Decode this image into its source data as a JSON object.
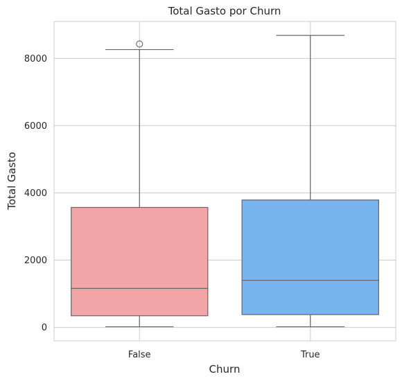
{
  "chart_data": {
    "type": "box",
    "title": "Total Gasto por Churn",
    "xlabel": "Churn",
    "ylabel": "Total Gasto",
    "categories": [
      "False",
      "True"
    ],
    "ylim": [
      -400,
      9100
    ],
    "yticks": [
      0,
      2000,
      4000,
      6000,
      8000
    ],
    "grid": true,
    "boxes": [
      {
        "category": "False",
        "whisker_low": 19,
        "q1": 346,
        "median": 1158,
        "q3": 3568,
        "whisker_high": 8264,
        "outliers": [
          8430
        ],
        "color": "#f2a5a6"
      },
      {
        "category": "True",
        "whisker_low": 19,
        "q1": 380,
        "median": 1400,
        "q3": 3790,
        "whisker_high": 8685,
        "outliers": [],
        "color": "#78b4ef"
      }
    ]
  }
}
